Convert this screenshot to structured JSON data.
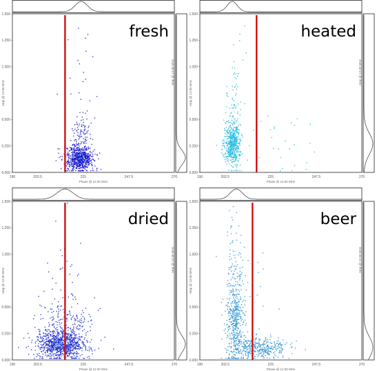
{
  "colors": {
    "reference_line": "#cc1111",
    "frame": "#222222",
    "marginal": "#333333",
    "points_fresh": "#1515cc",
    "points_heated": "#22bbdd",
    "points_dried": "#1525cc",
    "points_beer": "#2a8fd0"
  },
  "chart_data": [
    {
      "type": "scatter",
      "title": "fresh",
      "xlabel": "Phase @ 12.00 MHz",
      "ylabel": "Amp @ 12.00 MHz",
      "xlim": [
        190,
        270
      ],
      "ylim": [
        0,
        1.5
      ],
      "x_ticks": [
        "190",
        "202.5",
        "225",
        "247.5",
        "270"
      ],
      "y_ticks": [
        "0.000",
        "0.250",
        "0.500",
        "1.000",
        "1.250",
        "1.500"
      ],
      "reference_x": 216,
      "clusters": [
        {
          "cx": 223,
          "cy": 0.14,
          "sx": 3.5,
          "sy": 0.06,
          "n": 700,
          "color": "points_fresh"
        },
        {
          "cx": 224,
          "cy": 0.35,
          "sx": 2.5,
          "sy": 0.14,
          "n": 110,
          "color": "points_fresh"
        },
        {
          "cx": 223,
          "cy": 0.8,
          "sx": 4,
          "sy": 0.35,
          "n": 25,
          "color": "points_fresh"
        }
      ],
      "marginal_top": {
        "peak": 224,
        "width": 3
      },
      "marginal_right": {
        "peak": 0.14,
        "width": 0.07
      }
    },
    {
      "type": "scatter",
      "title": "heated",
      "xlabel": "Phase @ 12.00 MHz",
      "ylabel": "Amp @ 12.00 MHz",
      "xlim": [
        190,
        270
      ],
      "ylim": [
        0,
        1.5
      ],
      "x_ticks": [
        "190",
        "202.5",
        "225",
        "247.5",
        "270"
      ],
      "y_ticks": [
        "0.000",
        "0.250",
        "0.500",
        "1.000",
        "1.250",
        "1.500"
      ],
      "reference_x": 218,
      "clusters": [
        {
          "cx": 206,
          "cy": 0.27,
          "sx": 2.0,
          "sy": 0.1,
          "n": 520,
          "color": "points_heated"
        },
        {
          "cx": 206,
          "cy": 0.55,
          "sx": 1.8,
          "sy": 0.18,
          "n": 70,
          "color": "points_heated"
        },
        {
          "cx": 207,
          "cy": 1.0,
          "sx": 3,
          "sy": 0.3,
          "n": 20,
          "color": "points_heated"
        },
        {
          "cx": 230,
          "cy": 0.3,
          "sx": 10,
          "sy": 0.15,
          "n": 30,
          "color": "points_heated"
        }
      ],
      "marginal_top": {
        "peak": 206,
        "width": 2.5
      },
      "marginal_right": {
        "peak": 0.27,
        "width": 0.1
      }
    },
    {
      "type": "scatter",
      "title": "dried",
      "xlabel": "Phase @ 12.00 MHz",
      "ylabel": "Amp @ 12.00 MHz",
      "xlim": [
        190,
        270
      ],
      "ylim": [
        0,
        1.5
      ],
      "x_ticks": [
        "190",
        "202.5",
        "225",
        "247.5",
        "270"
      ],
      "y_ticks": [
        "0.000",
        "0.250",
        "0.500",
        "1.000",
        "1.250",
        "1.500"
      ],
      "reference_x": 216,
      "clusters": [
        {
          "cx": 214,
          "cy": 0.15,
          "sx": 6,
          "sy": 0.07,
          "n": 900,
          "color": "points_dried"
        },
        {
          "cx": 216,
          "cy": 0.35,
          "sx": 7,
          "sy": 0.14,
          "n": 200,
          "color": "points_dried"
        },
        {
          "cx": 215,
          "cy": 0.75,
          "sx": 6,
          "sy": 0.3,
          "n": 30,
          "color": "points_dried"
        }
      ],
      "marginal_top": {
        "peak": 216,
        "width": 4
      },
      "marginal_right": {
        "peak": 0.15,
        "width": 0.08
      }
    },
    {
      "type": "scatter",
      "title": "beer",
      "xlabel": "Phase @ 12.00 MHz",
      "ylabel": "Amp @ 12.00 MHz",
      "xlim": [
        190,
        270
      ],
      "ylim": [
        0,
        1.5
      ],
      "x_ticks": [
        "190",
        "202.5",
        "225",
        "247.5",
        "270"
      ],
      "y_ticks": [
        "0.000",
        "0.250",
        "0.500",
        "1.000",
        "1.250",
        "1.500"
      ],
      "reference_x": 216,
      "clusters": [
        {
          "cx": 207,
          "cy": 0.35,
          "sx": 2.2,
          "sy": 0.2,
          "n": 420,
          "color": "points_beer"
        },
        {
          "cx": 207,
          "cy": 0.9,
          "sx": 2.0,
          "sy": 0.3,
          "n": 90,
          "color": "points_beer"
        },
        {
          "cx": 219,
          "cy": 0.12,
          "sx": 7,
          "sy": 0.05,
          "n": 380,
          "color": "points_beer"
        },
        {
          "cx": 214,
          "cy": 0.55,
          "sx": 8,
          "sy": 0.35,
          "n": 40,
          "color": "points_beer"
        }
      ],
      "marginal_top": {
        "peak": 208,
        "width": 3
      },
      "marginal_right": {
        "peak": 0.12,
        "width": 0.1
      }
    }
  ]
}
